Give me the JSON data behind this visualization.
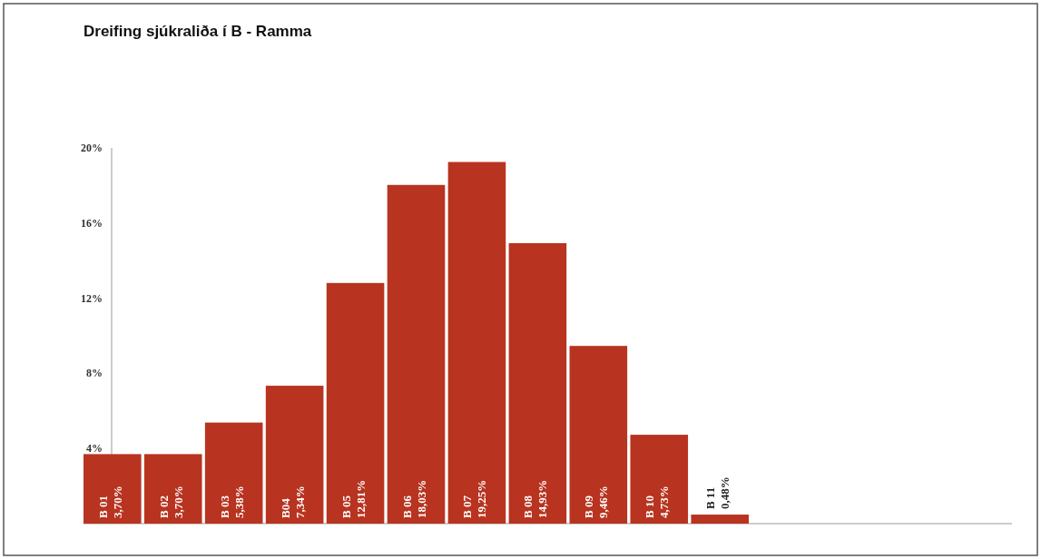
{
  "chart_data": {
    "type": "bar",
    "title": "Dreifing sjúkraliða í B - Ramma",
    "categories": [
      "B 01",
      "B 02",
      "B 03",
      "B04",
      "B 05",
      "B 06",
      "B 07",
      "B 08",
      "B 09",
      "B 10",
      "B 11"
    ],
    "values": [
      3.7,
      3.7,
      5.38,
      7.34,
      12.81,
      18.03,
      19.25,
      14.93,
      9.46,
      4.73,
      0.48
    ],
    "value_labels": [
      "3,70%",
      "3,70%",
      "5,38%",
      "7,34%",
      "12,81%",
      "18,03%",
      "19,25%",
      "14,93%",
      "9,46%",
      "4,73%",
      "0,48%"
    ],
    "color": "#b83420",
    "ylim": [
      0,
      20
    ],
    "yticks": [
      {
        "value": 4,
        "label": "4%"
      },
      {
        "value": 8,
        "label": "8%"
      },
      {
        "value": 12,
        "label": "12%"
      },
      {
        "value": 16,
        "label": "16%"
      },
      {
        "value": 20,
        "label": "20%"
      }
    ],
    "grid": false
  }
}
